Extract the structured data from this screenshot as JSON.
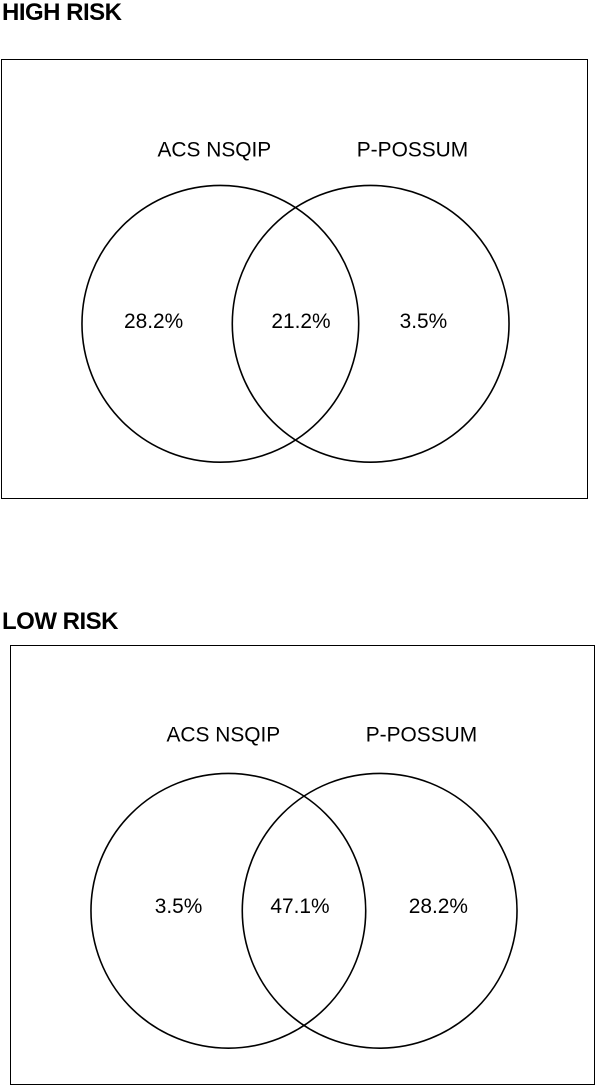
{
  "diagrams": [
    {
      "title": "HIGH RISK",
      "left_set": "ACS NSQIP",
      "right_set": "P-POSSUM",
      "left_only": "28.2%",
      "overlap": "21.2%",
      "right_only": "3.5%"
    },
    {
      "title": "LOW RISK",
      "left_set": "ACS NSQIP",
      "right_set": "P-POSSUM",
      "left_only": "3.5%",
      "overlap": "47.1%",
      "right_only": "28.2%"
    }
  ]
}
